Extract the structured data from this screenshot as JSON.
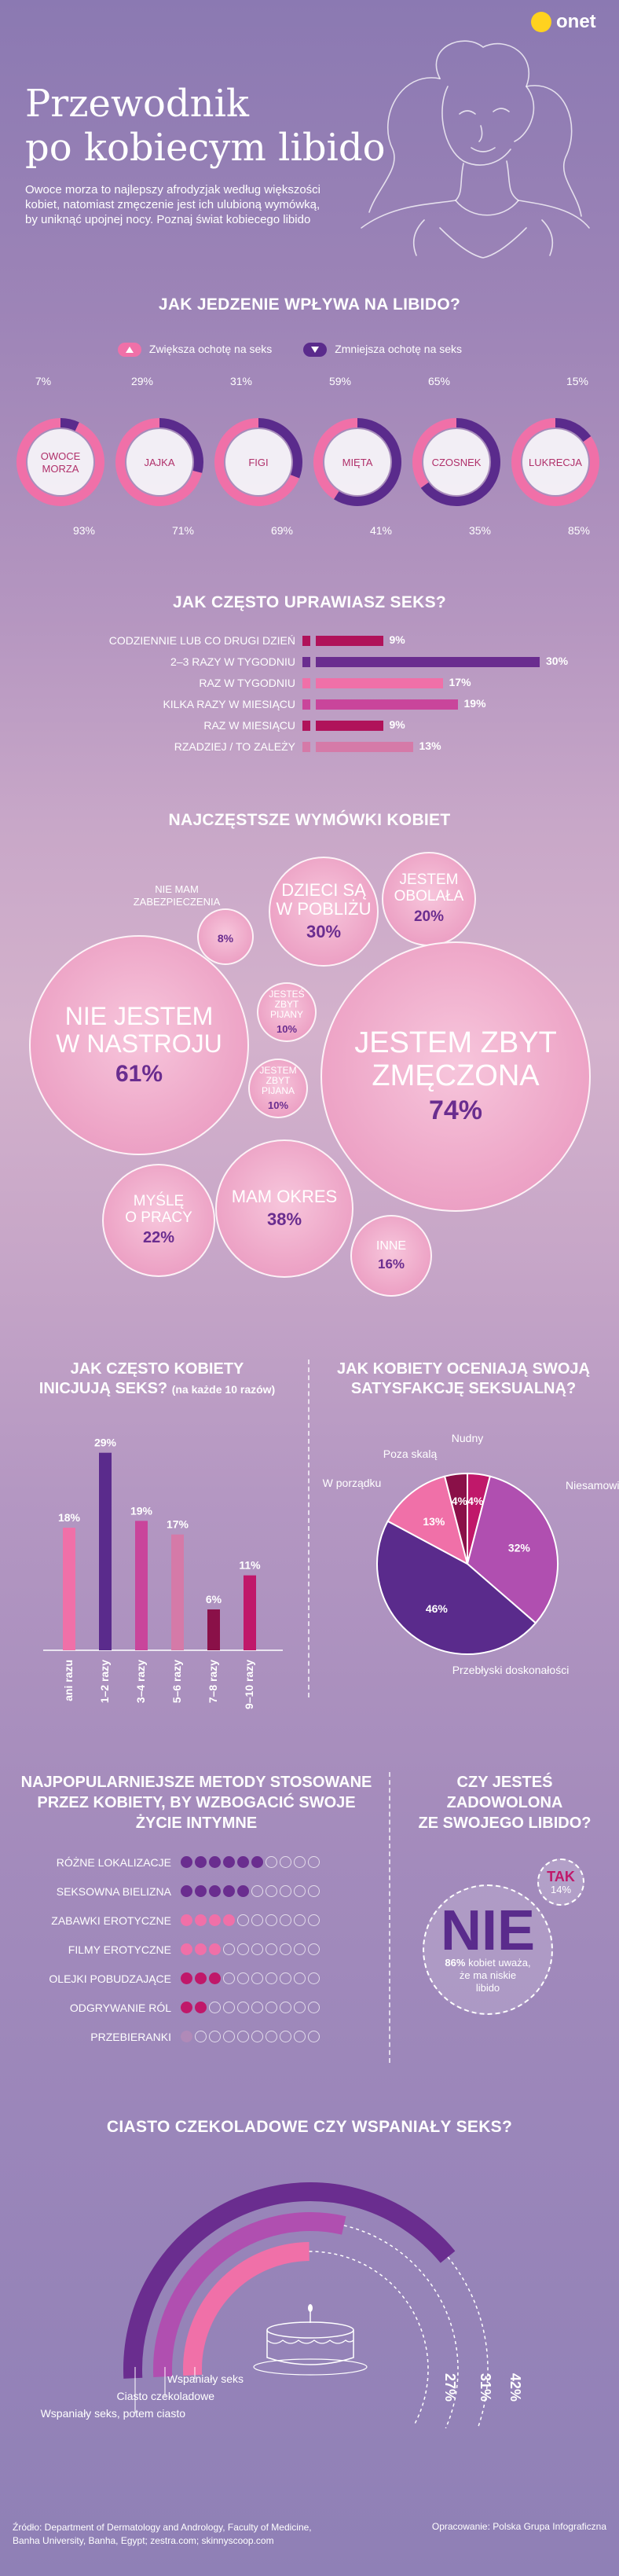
{
  "brand": {
    "logo_text": "onet",
    "logo_color": "#ffd21f"
  },
  "hero": {
    "title_line1": "Przewodnik",
    "title_line2": "po kobiecym libido",
    "intro_line1": "Owoce morza to najlepszy afrodyzjak według większości",
    "intro_line2": "kobiet, natomiast zmęczenie jest ich ulubioną wymówką,",
    "intro_line3": "by uniknąć upojnej nocy. Poznaj świat kobiecego libido"
  },
  "food": {
    "title": "JAK JEDZENIE WPŁYWA NA LIBIDO?",
    "legend_increase": "Zwiększa ochotę na seks",
    "legend_decrease": "Zmniejsza ochotę na seks",
    "colors": {
      "increase": "#f070a8",
      "decrease": "#5a2b8c"
    }
  },
  "frequency": {
    "title": "JAK CZĘSTO UPRAWIASZ SEKS?"
  },
  "excuses": {
    "title": "NAJCZĘSTSZE WYMÓWKI KOBIET"
  },
  "initiate": {
    "title_line1": "JAK CZĘSTO KOBIETY",
    "title_line2": "INICJUJĄ SEKS?",
    "title_note": "(na każde 10 razów)"
  },
  "satisfaction": {
    "title_line1": "JAK KOBIETY OCENIAJĄ SWOJĄ",
    "title_line2": "SATYSFAKCJĘ SEKSUALNĄ?"
  },
  "methods": {
    "title_line1": "NAJPOPULARNIEJSZE METODY STOSOWANE",
    "title_line2": "PRZEZ KOBIETY, BY WZBOGACIĆ SWOJE",
    "title_line3": "ŻYCIE INTYMNE"
  },
  "happy": {
    "title_line1": "CZY JESTEŚ",
    "title_line2": "ZADOWOLONA",
    "title_line3": "ZE SWOJEGO LIBIDO?",
    "yes_label": "TAK",
    "yes_value": "14%",
    "no_label": "NIE",
    "no_value": "86%",
    "no_text1": "kobiet uważa,",
    "no_text2": "że ma niskie",
    "no_text3": "libido"
  },
  "cake": {
    "title": "CIASTO CZEKOLADOWE CZY WSPANIAŁY SEKS?"
  },
  "footer": {
    "source1": "Źródło: Department of Dermatology and Andrology, Faculty of Medicine,",
    "source2": "Banha University, Banha, Egypt; zestra.com; skinnyscoop.com",
    "credit": "Opracowanie: Polska Grupa Infograficzna"
  },
  "chart_data": [
    {
      "type": "pie",
      "id": "food",
      "title": "JAK JEDZENIE WPŁYWA NA LIBIDO?",
      "series": [
        {
          "name": "Zwiększa ochotę na seks",
          "color": "#f070a8"
        },
        {
          "name": "Zmniejsza ochotę na seks",
          "color": "#5a2b8c"
        }
      ],
      "items": [
        {
          "label": "OWOCE MORZA",
          "line1": "OWOCE",
          "line2": "MORZA",
          "increase": 93,
          "decrease": 7,
          "increase_label": "93%",
          "decrease_label": "7%"
        },
        {
          "label": "JAJKA",
          "line1": "JAJKA",
          "line2": "",
          "increase": 71,
          "decrease": 29,
          "increase_label": "71%",
          "decrease_label": "29%"
        },
        {
          "label": "FIGI",
          "line1": "FIGI",
          "line2": "",
          "increase": 69,
          "decrease": 31,
          "increase_label": "69%",
          "decrease_label": "31%"
        },
        {
          "label": "MIĘTA",
          "line1": "MIĘTA",
          "line2": "",
          "increase": 41,
          "decrease": 59,
          "increase_label": "41%",
          "decrease_label": "59%"
        },
        {
          "label": "CZOSNEK",
          "line1": "CZOSNEK",
          "line2": "",
          "increase": 35,
          "decrease": 65,
          "increase_label": "35%",
          "decrease_label": "65%"
        },
        {
          "label": "LUKRECJA",
          "line1": "LUKRECJA",
          "line2": "",
          "increase": 85,
          "decrease": 15,
          "increase_label": "85%",
          "decrease_label": "15%"
        }
      ]
    },
    {
      "type": "bar",
      "id": "frequency",
      "orientation": "horizontal",
      "title": "JAK CZĘSTO UPRAWIASZ SEKS?",
      "categories": [
        "CODZIENNIE LUB CO DRUGI DZIEŃ",
        "2–3 RAZY W TYGODNIU",
        "RAZ W TYGODNIU",
        "KILKA RAZY W MIESIĄCU",
        "RAZ W MIESIĄCU",
        "RZADZIEJ / TO ZALEŻY"
      ],
      "values": [
        9,
        30,
        17,
        19,
        9,
        13
      ],
      "value_labels": [
        "9%",
        "30%",
        "17%",
        "19%",
        "9%",
        "13%"
      ],
      "colors": [
        "#b0125a",
        "#6a2d8f",
        "#f070a8",
        "#c9459b",
        "#b0125a",
        "#d57aa8"
      ]
    },
    {
      "type": "scatter",
      "id": "excuses",
      "title": "NAJCZĘSTSZE WYMÓWKI KOBIET",
      "items": [
        {
          "line1": "NIE MAM",
          "line2": "ZABEZPIECZENIA",
          "line3": "",
          "value": 8,
          "label": "8%"
        },
        {
          "line1": "DZIECI SĄ",
          "line2": "W POBLIŻU",
          "line3": "",
          "value": 30,
          "label": "30%"
        },
        {
          "line1": "JESTEM",
          "line2": "OBOLAŁA",
          "line3": "",
          "value": 20,
          "label": "20%"
        },
        {
          "line1": "NIE JESTEM",
          "line2": "W NASTROJU",
          "line3": "",
          "value": 61,
          "label": "61%"
        },
        {
          "line1": "JESTEŚ",
          "line2": "ZBYT",
          "line3": "PIJANY",
          "value": 10,
          "label": "10%"
        },
        {
          "line1": "JESTEM",
          "line2": "ZBYT",
          "line3": "PIJANA",
          "value": 10,
          "label": "10%"
        },
        {
          "line1": "JESTEM ZBYT",
          "line2": "ZMĘCZONA",
          "line3": "",
          "value": 74,
          "label": "74%"
        },
        {
          "line1": "MYŚLĘ",
          "line2": "O PRACY",
          "line3": "",
          "value": 22,
          "label": "22%"
        },
        {
          "line1": "MAM OKRES",
          "line2": "",
          "line3": "",
          "value": 38,
          "label": "38%"
        },
        {
          "line1": "INNE",
          "line2": "",
          "line3": "",
          "value": 16,
          "label": "16%"
        }
      ]
    },
    {
      "type": "bar",
      "id": "initiate",
      "title": "JAK CZĘSTO KOBIETY INICJUJĄ SEKS? (na każde 10 razów)",
      "categories": [
        "ani razu",
        "1–2 razy",
        "3–4 razy",
        "5–6 razy",
        "7–8 razy",
        "9–10 razy"
      ],
      "values": [
        18,
        29,
        19,
        17,
        6,
        11
      ],
      "value_labels": [
        "18%",
        "29%",
        "19%",
        "17%",
        "6%",
        "11%"
      ],
      "colors": [
        "#f070a8",
        "#5a2b8c",
        "#c9459b",
        "#d57aa8",
        "#8a1048",
        "#c0186a"
      ],
      "ylim": [
        0,
        30
      ]
    },
    {
      "type": "pie",
      "id": "satisfaction",
      "title": "JAK KOBIETY OCENIAJĄ SWOJĄ SATYSFAKCJĘ SEKSUALNĄ?",
      "slices": [
        {
          "name": "Nudny",
          "value": 4,
          "label": "4%",
          "color": "#c0186a"
        },
        {
          "name": "Niesamowity!",
          "value": 32,
          "label": "32%",
          "color": "#b04fb0"
        },
        {
          "name": "Przebłyski doskonałości",
          "value": 46,
          "label": "46%",
          "color": "#5a2b8c"
        },
        {
          "name": "W porządku",
          "value": 13,
          "label": "13%",
          "color": "#f070a8"
        },
        {
          "name": "Poza skalą",
          "value": 4,
          "label": "4%",
          "color": "#8a1048"
        }
      ]
    },
    {
      "type": "table",
      "id": "methods",
      "title": "NAJPOPULARNIEJSZE METODY STOSOWANE PRZEZ KOBIETY, BY WZBOGACIĆ SWOJE ŻYCIE INTYMNE",
      "scale_max": 10,
      "rows": [
        {
          "label": "RÓŻNE LOKALIZACJE",
          "value": 6,
          "color": "#6a2d8f"
        },
        {
          "label": "SEKSOWNA BIELIZNA",
          "value": 5,
          "color": "#6a2d8f"
        },
        {
          "label": "ZABAWKI EROTYCZNE",
          "value": 4,
          "color": "#f070a8"
        },
        {
          "label": "FILMY EROTYCZNE",
          "value": 3,
          "color": "#f070a8"
        },
        {
          "label": "OLEJKI POBUDZAJĄCE",
          "value": 3,
          "color": "#c0186a"
        },
        {
          "label": "ODGRYWANIE RÓL",
          "value": 2,
          "color": "#c0186a"
        },
        {
          "label": "PRZEBIERANKI",
          "value": 1,
          "color": "#b08ab8"
        }
      ]
    },
    {
      "type": "pie",
      "id": "cake",
      "title": "CIASTO CZEKOLADOWE CZY WSPANIAŁY SEKS?",
      "slices": [
        {
          "name": "Wspaniały seks",
          "value": 27,
          "label": "27%",
          "color": "#f070a8"
        },
        {
          "name": "Ciasto czekoladowe",
          "value": 31,
          "label": "31%",
          "color": "#b04fb0"
        },
        {
          "name": "Wspaniały seks, potem ciasto",
          "value": 42,
          "label": "42%",
          "color": "#6a2d8f"
        }
      ]
    }
  ]
}
